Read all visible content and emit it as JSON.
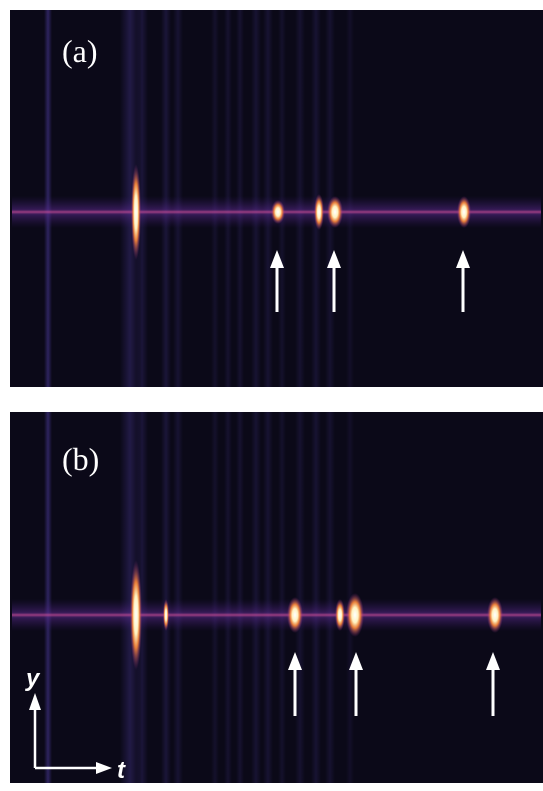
{
  "panels": [
    {
      "label": "(a)"
    },
    {
      "label": "(b)"
    }
  ],
  "axes": {
    "y": "y",
    "x": "t"
  }
}
